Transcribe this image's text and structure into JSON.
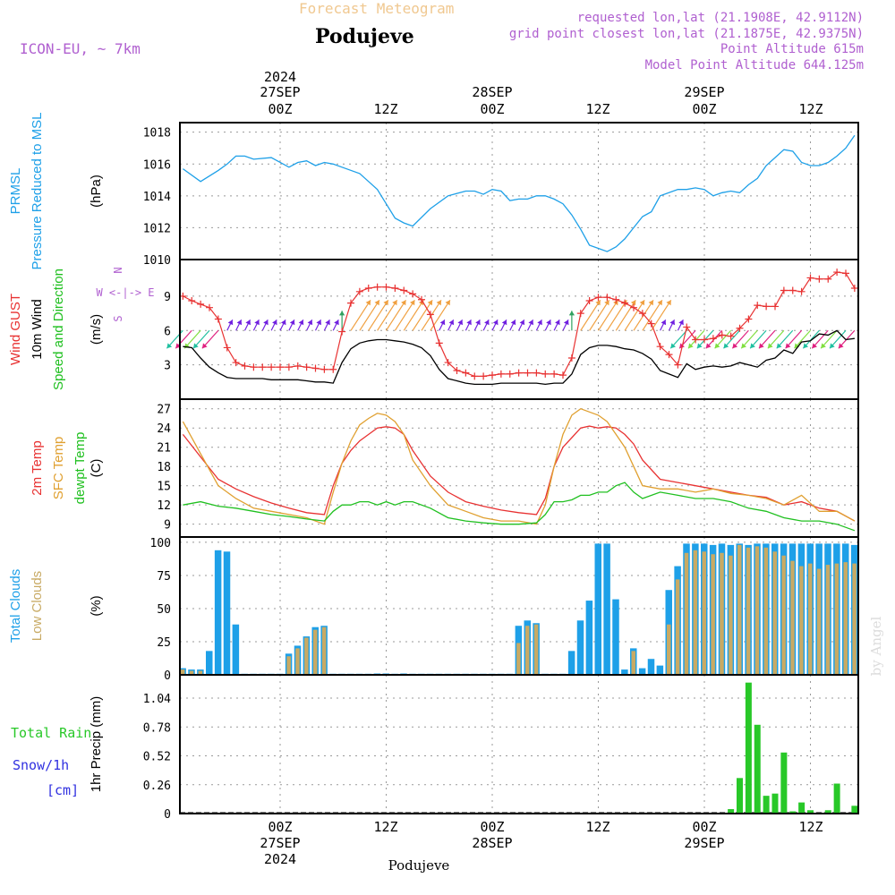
{
  "header": {
    "product_title": "Forecast Meteogram",
    "location": "Podujeve",
    "model": "ICON-EU, ~ 7km",
    "requested": "requested lon,lat (21.1908E, 42.9112N)",
    "grid_point": "grid point closest lon,lat (21.1875E, 42.9375N)",
    "point_altitude": "Point Altitude 615m",
    "model_altitude": "Model Point Altitude 644.125m",
    "footer_location": "Podujeve",
    "watermark": "by Angel"
  },
  "colors": {
    "pressure": "#1ea0e8",
    "gust": "#e83232",
    "wind": "#000000",
    "temp2m": "#e83232",
    "sfc_temp": "#e0a030",
    "dewpoint": "#20c020",
    "total_clouds": "#1ea0e8",
    "low_clouds": "#c8aa64",
    "rain": "#28c828",
    "snow": "#3030e0",
    "meta": "#b060d0"
  },
  "time_axis": {
    "top_year": "2024",
    "date_labels": [
      "27SEP",
      "28SEP",
      "29SEP"
    ],
    "hour_labels": [
      "00Z",
      "12Z",
      "00Z",
      "12Z",
      "00Z",
      "12Z"
    ],
    "bottom_dates": [
      "27SEP",
      "28SEP",
      "29SEP"
    ],
    "bottom_year": "2024"
  },
  "chart_data": [
    {
      "type": "line",
      "title": "PRMSL Pressure Reduced to MSL",
      "label_lines": [
        [
          "PRMSL",
          "#1ea0e8"
        ],
        [
          "Pressure Reduced to MSL",
          "#1ea0e8"
        ]
      ],
      "ylabel": "(hPa)",
      "x_hours_from_27SEP00Z": [
        -11,
        -9,
        -7,
        -6,
        -5,
        -4,
        -3,
        -1,
        1,
        2,
        3,
        4,
        5,
        6,
        7,
        9,
        10,
        11,
        12,
        13,
        14,
        15,
        17,
        19,
        21,
        22,
        23,
        24,
        25,
        26,
        27,
        28,
        29,
        30,
        31,
        32,
        33,
        34,
        35,
        36,
        37,
        38,
        39,
        40,
        41,
        42,
        43,
        45,
        46,
        47,
        48,
        49,
        50,
        51,
        52,
        53,
        54,
        55,
        56,
        57,
        58,
        59,
        60,
        61,
        62,
        63,
        64,
        65
      ],
      "series": [
        {
          "values": [
            1015.7,
            1014.9,
            1015.6,
            1016.0,
            1016.5,
            1016.5,
            1016.3,
            1016.4,
            1015.8,
            1016.1,
            1016.2,
            1015.9,
            1016.1,
            1016.0,
            1015.8,
            1015.4,
            1014.9,
            1014.4,
            1013.5,
            1012.6,
            1012.3,
            1012.1,
            1013.2,
            1014.0,
            1014.3,
            1014.3,
            1014.1,
            1014.4,
            1014.3,
            1013.7,
            1013.8,
            1013.8,
            1014.0,
            1014.0,
            1013.8,
            1013.5,
            1012.8,
            1011.9,
            1010.9,
            1010.7,
            1010.5,
            1010.8,
            1011.3,
            1012.0,
            1012.7,
            1013.0,
            1014.0,
            1014.4,
            1014.4,
            1014.5,
            1014.4,
            1014.0,
            1014.2,
            1014.3,
            1014.2,
            1014.7,
            1015.1,
            1015.9,
            1016.4,
            1016.9,
            1016.8,
            1016.1,
            1015.9,
            1015.9,
            1016.1,
            1016.5,
            1017.0,
            1017.8
          ]
        }
      ],
      "ylim": [
        1010,
        1018.6
      ],
      "yticks": [
        1010,
        1012,
        1014,
        1016,
        1018
      ]
    },
    {
      "type": "line",
      "title": "Wind GUST / 10m Wind Speed and Direction",
      "label_lines": [
        [
          "Wind GUST",
          "#e83232"
        ],
        [
          "10m Wind",
          "#000000"
        ],
        [
          "Speed and Direction",
          "#20c020"
        ]
      ],
      "ylabel": "(m/s)",
      "compass": "W <-|-> E",
      "x_hours_from_27SEP00Z": [
        -11,
        -10,
        -9,
        -8,
        -7,
        -6,
        -5,
        -4,
        -3,
        -2,
        -1,
        0,
        1,
        2,
        3,
        4,
        5,
        6,
        7,
        8,
        9,
        10,
        11,
        12,
        13,
        14,
        15,
        16,
        17,
        18,
        19,
        20,
        21,
        22,
        23,
        24,
        25,
        26,
        27,
        28,
        29,
        30,
        31,
        32,
        33,
        34,
        35,
        36,
        37,
        38,
        39,
        40,
        41,
        42,
        43,
        44,
        45,
        46,
        47,
        48,
        49,
        50,
        51,
        52,
        53,
        54,
        55,
        56,
        57,
        58,
        59,
        60,
        61,
        62,
        63,
        64,
        65
      ],
      "series": [
        {
          "name": "Wind GUST",
          "values": [
            9.0,
            8.6,
            8.3,
            8.0,
            7.0,
            4.5,
            3.2,
            2.9,
            2.8,
            2.8,
            2.8,
            2.8,
            2.8,
            2.9,
            2.8,
            2.7,
            2.6,
            2.6,
            5.9,
            8.4,
            9.4,
            9.7,
            9.8,
            9.8,
            9.7,
            9.5,
            9.2,
            8.7,
            7.4,
            4.9,
            3.2,
            2.5,
            2.3,
            2.0,
            2.0,
            2.1,
            2.2,
            2.2,
            2.3,
            2.3,
            2.3,
            2.2,
            2.2,
            2.1,
            3.6,
            7.5,
            8.6,
            8.9,
            8.9,
            8.7,
            8.4,
            8.0,
            7.5,
            6.6,
            4.6,
            3.9,
            3.0,
            6.3,
            5.2,
            5.2,
            5.3,
            5.6,
            5.5,
            6.2,
            7.0,
            8.2,
            8.1,
            8.1,
            9.5,
            9.5,
            9.4,
            10.6,
            10.5,
            10.5,
            11.1,
            11.0,
            9.7
          ]
        },
        {
          "name": "10m Wind",
          "values": [
            4.6,
            4.5,
            3.6,
            2.8,
            2.3,
            1.9,
            1.8,
            1.8,
            1.8,
            1.8,
            1.7,
            1.7,
            1.7,
            1.7,
            1.6,
            1.5,
            1.5,
            1.4,
            3.2,
            4.4,
            4.9,
            5.1,
            5.2,
            5.2,
            5.1,
            5.0,
            4.8,
            4.5,
            3.8,
            2.6,
            1.8,
            1.6,
            1.4,
            1.3,
            1.3,
            1.3,
            1.4,
            1.4,
            1.4,
            1.4,
            1.4,
            1.3,
            1.4,
            1.4,
            2.2,
            3.9,
            4.5,
            4.7,
            4.7,
            4.6,
            4.4,
            4.3,
            4.0,
            3.5,
            2.5,
            2.2,
            1.9,
            3.1,
            2.6,
            2.8,
            2.9,
            2.8,
            2.9,
            3.2,
            3.0,
            2.8,
            3.4,
            3.6,
            4.3,
            4.0,
            5.0,
            5.1,
            5.7,
            5.6,
            6.0,
            5.2,
            5.3
          ]
        }
      ],
      "arrow_dir": [
        -1,
        -1,
        -1,
        -1,
        -1,
        1,
        1,
        1,
        1,
        1,
        1,
        1,
        1,
        1,
        1,
        1,
        1,
        1,
        0,
        1,
        1,
        1,
        1,
        1,
        1,
        1,
        1,
        1,
        1,
        1,
        1,
        1,
        1,
        1,
        1,
        1,
        1,
        1,
        1,
        1,
        1,
        1,
        1,
        1,
        0,
        1,
        1,
        1,
        1,
        1,
        1,
        1,
        1,
        1,
        1,
        1,
        1,
        -1,
        -1,
        -1,
        -1,
        -1,
        -1,
        -1,
        -1,
        -1,
        -1,
        -1,
        -1,
        -1,
        -1,
        -1,
        -1,
        -1,
        -1,
        -1,
        -1
      ],
      "ylim": [
        0,
        12.2
      ],
      "yticks": [
        3,
        6,
        9
      ]
    },
    {
      "type": "line",
      "title": "2m Temp / SFC Temp / dewpt Temp",
      "label_lines": [
        [
          "2m Temp",
          "#e83232"
        ],
        [
          "SFC Temp",
          "#e0a030"
        ],
        [
          "dewpt Temp",
          "#20c020"
        ]
      ],
      "ylabel": "(C)",
      "x_hours_from_27SEP00Z": [
        -11,
        -9,
        -7,
        -5,
        -3,
        -1,
        1,
        3,
        5,
        6,
        7,
        8,
        9,
        10,
        11,
        12,
        13,
        14,
        15,
        17,
        19,
        21,
        23,
        25,
        27,
        29,
        30,
        31,
        32,
        33,
        34,
        35,
        36,
        37,
        38,
        39,
        40,
        41,
        43,
        45,
        47,
        49,
        51,
        53,
        55,
        57,
        59,
        61,
        63,
        65
      ],
      "series": [
        {
          "name": "2m Temp",
          "values": [
            23.0,
            19.5,
            16.0,
            14.5,
            13.3,
            12.3,
            11.5,
            10.8,
            10.5,
            15.0,
            18.5,
            20.5,
            22.0,
            23.0,
            24.0,
            24.2,
            24.0,
            23.0,
            20.5,
            16.5,
            14.0,
            12.5,
            11.8,
            11.2,
            10.8,
            10.5,
            13.0,
            18.0,
            21.0,
            22.5,
            24.0,
            24.3,
            24.0,
            24.2,
            24.0,
            23.0,
            21.5,
            19.0,
            16.0,
            15.5,
            15.0,
            14.5,
            14.0,
            13.5,
            13.2,
            12.0,
            12.5,
            11.5,
            11.0,
            9.5
          ]
        },
        {
          "name": "SFC Temp",
          "values": [
            25.0,
            20.0,
            15.0,
            13.0,
            11.5,
            11.0,
            10.5,
            10.0,
            9.0,
            14.0,
            18.5,
            22.0,
            24.5,
            25.5,
            26.3,
            26.0,
            25.0,
            23.0,
            19.0,
            15.0,
            12.0,
            11.0,
            10.0,
            9.5,
            9.5,
            9.0,
            12.0,
            18.0,
            23.0,
            26.0,
            27.0,
            26.5,
            26.0,
            25.0,
            23.0,
            21.0,
            18.0,
            15.0,
            14.5,
            14.5,
            14.0,
            14.5,
            13.8,
            13.5,
            13.0,
            12.0,
            13.5,
            11.0,
            11.0,
            9.5
          ]
        },
        {
          "name": "dewpt Temp",
          "values": [
            12.0,
            12.5,
            11.8,
            11.5,
            11.0,
            10.5,
            10.2,
            9.8,
            9.5,
            11.0,
            12.0,
            12.0,
            12.5,
            12.5,
            12.0,
            12.5,
            12.0,
            12.5,
            12.5,
            11.5,
            10.0,
            9.5,
            9.2,
            9.0,
            9.0,
            9.2,
            10.5,
            12.5,
            12.5,
            12.8,
            13.5,
            13.5,
            14.0,
            14.0,
            15.0,
            15.5,
            14.0,
            13.0,
            14.0,
            13.5,
            13.0,
            13.0,
            12.5,
            11.5,
            11.0,
            10.0,
            9.5,
            9.5,
            9.0,
            8.0
          ]
        }
      ],
      "ylim": [
        7,
        28.5
      ],
      "yticks": [
        9,
        12,
        15,
        18,
        21,
        24,
        27
      ]
    },
    {
      "type": "bar",
      "title": "Total Clouds / Low Clouds",
      "label_lines": [
        [
          "Total Clouds",
          "#1ea0e8"
        ],
        [
          "Low Clouds",
          "#c8aa64"
        ]
      ],
      "ylabel": "(%)",
      "x_hours_from_27SEP00Z": [
        -11,
        -10,
        -9,
        -8,
        -7,
        -6,
        -5,
        -4,
        -3,
        -2,
        -1,
        0,
        1,
        2,
        3,
        4,
        5,
        6,
        7,
        8,
        9,
        10,
        11,
        12,
        13,
        14,
        15,
        16,
        17,
        18,
        19,
        20,
        21,
        22,
        23,
        24,
        25,
        26,
        27,
        28,
        29,
        30,
        31,
        32,
        33,
        34,
        35,
        36,
        37,
        38,
        39,
        40,
        41,
        42,
        43,
        44,
        45,
        46,
        47,
        48,
        49,
        50,
        51,
        52,
        53,
        54,
        55,
        56,
        57,
        58,
        59,
        60,
        61,
        62,
        63,
        64,
        65
      ],
      "series": [
        {
          "name": "Total Clouds",
          "values": [
            5,
            4,
            4,
            18,
            94,
            93,
            38,
            0,
            0,
            0,
            0,
            0,
            16,
            22,
            29,
            36,
            37,
            0,
            0,
            0,
            0,
            0,
            1,
            1,
            0,
            1,
            0,
            0,
            0,
            0,
            0,
            0,
            0,
            0,
            0,
            0,
            0,
            0,
            37,
            41,
            39,
            0,
            0,
            0,
            18,
            41,
            56,
            99,
            99,
            57,
            4,
            20,
            5,
            12,
            7,
            64,
            82,
            99,
            99,
            99,
            98,
            99,
            98,
            99,
            98,
            99,
            99,
            99,
            99,
            99,
            99,
            99,
            99,
            99,
            99,
            99,
            98
          ]
        },
        {
          "name": "Low Clouds",
          "values": [
            4,
            3,
            3,
            0,
            0,
            0,
            0,
            0,
            0,
            0,
            0,
            0,
            14,
            20,
            28,
            34,
            36,
            0,
            0,
            0,
            0,
            0,
            0,
            0,
            0,
            0,
            0,
            0,
            0,
            0,
            0,
            0,
            0,
            0,
            0,
            0,
            0,
            0,
            24,
            37,
            38,
            0,
            0,
            0,
            0,
            0,
            0,
            0,
            0,
            0,
            0,
            18,
            0,
            0,
            0,
            38,
            72,
            92,
            94,
            93,
            91,
            92,
            90,
            98,
            96,
            97,
            96,
            93,
            90,
            86,
            82,
            84,
            80,
            83,
            84,
            85,
            84
          ]
        }
      ],
      "ylim": [
        0,
        104
      ],
      "yticks": [
        0,
        25,
        50,
        75,
        100
      ]
    },
    {
      "type": "bar",
      "title": "1hr Precip (mm)",
      "label_lines": [
        [
          "Total  Rain",
          "#28c828"
        ],
        [
          "Snow/1h",
          "#3030e0"
        ],
        [
          "[cm]",
          "#3030e0"
        ]
      ],
      "ylabel": "1hr Precip (mm)",
      "x_hours_from_27SEP00Z": [
        51,
        52,
        53,
        54,
        55,
        56,
        57,
        58,
        59,
        60,
        62,
        63,
        65
      ],
      "series": [
        {
          "name": "Total Rain",
          "values": [
            0.04,
            0.32,
            1.18,
            0.8,
            0.16,
            0.18,
            0.55,
            0.02,
            0.1,
            0.03,
            0.03,
            0.27,
            0.07
          ]
        }
      ],
      "ylim": [
        0,
        1.25
      ],
      "yticks": [
        0,
        0.26,
        0.52,
        0.78,
        1.04
      ]
    }
  ]
}
